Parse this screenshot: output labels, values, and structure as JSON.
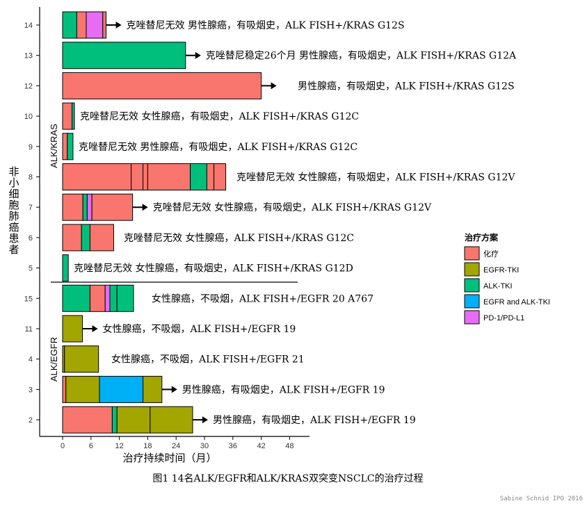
{
  "chart_data": {
    "type": "bar",
    "orientation": "horizontal",
    "title": "图1 14名ALK/EGFR和ALK/KRAS双突变NSCLC的治疗过程",
    "xlabel": "治疗持续时间（月）",
    "ylabel": "非小细胞肺癌患者",
    "xlim": [
      0,
      48
    ],
    "xticks": [
      0,
      6,
      12,
      18,
      24,
      30,
      36,
      42,
      48
    ],
    "grid": false,
    "legend": {
      "title": "治疗方案",
      "placement": "right",
      "entries": [
        {
          "key": "chemo",
          "label": "化疗",
          "color": "#F8766D"
        },
        {
          "key": "egfr",
          "label": "EGFR-TKI",
          "color": "#A3A500"
        },
        {
          "key": "alk",
          "label": "ALK-TKI",
          "color": "#00BF7D"
        },
        {
          "key": "egfr_alk",
          "label": "EGFR and ALK-TKI",
          "color": "#00B0F6"
        },
        {
          "key": "pd1",
          "label": "PD-1/PD-L1",
          "color": "#E76BF3"
        }
      ]
    },
    "groups": [
      {
        "label": "ALK/KRAS",
        "patients": [
          "14",
          "13",
          "12",
          "10",
          "9",
          "8",
          "7",
          "6",
          "5"
        ]
      },
      {
        "label": "ALK/EGFR",
        "patients": [
          "15",
          "11",
          "4",
          "3",
          "2"
        ]
      }
    ],
    "patients": [
      {
        "id": "14",
        "ongoing": true,
        "annotation": "克唑替尼无效  男性腺癌，有吸烟史，ALK FISH+/KRAS G12S",
        "segments": [
          {
            "t": "alk",
            "s": 0,
            "e": 3
          },
          {
            "t": "chemo",
            "s": 3,
            "e": 5
          },
          {
            "t": "pd1",
            "s": 5,
            "e": 8.5
          },
          {
            "t": "chemo",
            "s": 8.5,
            "e": 9.2
          }
        ]
      },
      {
        "id": "13",
        "ongoing": true,
        "annotation": "克唑替尼稳定26个月 男性腺癌，有吸烟史，ALK FISH+/KRAS G12A",
        "segments": [
          {
            "t": "alk",
            "s": 0,
            "e": 26
          }
        ]
      },
      {
        "id": "12",
        "ongoing": true,
        "annotation": "男性腺癌，有吸烟史，ALK FISH+/KRAS G12S",
        "segments": [
          {
            "t": "chemo",
            "s": 0,
            "e": 42
          }
        ]
      },
      {
        "id": "10",
        "ongoing": false,
        "annotation": "克唑替尼无效  女性腺癌，有吸烟史，ALK FISH+/KRAS G12C",
        "segments": [
          {
            "t": "chemo",
            "s": 0,
            "e": 2
          },
          {
            "t": "alk",
            "s": 2,
            "e": 2.5
          }
        ]
      },
      {
        "id": "9",
        "ongoing": false,
        "annotation": "克唑替尼无效  男性腺癌，有吸烟史，ALK FISH+/KRAS G12C",
        "segments": [
          {
            "t": "chemo",
            "s": 0,
            "e": 1
          },
          {
            "t": "alk",
            "s": 1,
            "e": 2.2
          }
        ]
      },
      {
        "id": "8",
        "ongoing": false,
        "annotation": "克唑替尼无效 女性腺癌，有吸烟史，ALK FISH+/KRAS G12V",
        "segments": [
          {
            "t": "chemo",
            "s": 0,
            "e": 14.5
          },
          {
            "t": "chemo",
            "s": 14.5,
            "e": 17
          },
          {
            "t": "chemo",
            "s": 17,
            "e": 18
          },
          {
            "t": "chemo",
            "s": 18,
            "e": 27
          },
          {
            "t": "alk",
            "s": 27,
            "e": 30.5
          },
          {
            "t": "chemo",
            "s": 30.5,
            "e": 32
          },
          {
            "t": "chemo",
            "s": 32,
            "e": 34.5
          }
        ]
      },
      {
        "id": "7",
        "ongoing": true,
        "annotation": "克唑替尼无效 女性腺癌，有吸烟史，ALK FISH+/KRAS G12V",
        "segments": [
          {
            "t": "chemo",
            "s": 0,
            "e": 4.3
          },
          {
            "t": "alk",
            "s": 4.3,
            "e": 5.2
          },
          {
            "t": "pd1",
            "s": 5.2,
            "e": 6.2
          },
          {
            "t": "chemo",
            "s": 6.2,
            "e": 14.8
          }
        ]
      },
      {
        "id": "6",
        "ongoing": false,
        "annotation": "克唑替尼无效 女性腺癌，ALK FISH+/KRAS G12C",
        "segments": [
          {
            "t": "chemo",
            "s": 0,
            "e": 4
          },
          {
            "t": "alk",
            "s": 4,
            "e": 5.8
          },
          {
            "t": "chemo",
            "s": 5.8,
            "e": 10.8
          }
        ]
      },
      {
        "id": "5",
        "ongoing": false,
        "annotation": "克唑替尼无效  女性腺癌，有吸烟史，ALK FISH+/KRAS G12D",
        "segments": [
          {
            "t": "alk",
            "s": 0,
            "e": 1.2
          }
        ]
      },
      {
        "id": "15",
        "ongoing": false,
        "annotation": "女性腺癌，不吸烟，ALK FISH+/EGFR 20 A767",
        "segments": [
          {
            "t": "alk",
            "s": 0,
            "e": 5.8
          },
          {
            "t": "chemo",
            "s": 5.8,
            "e": 9
          },
          {
            "t": "pd1",
            "s": 9,
            "e": 10
          },
          {
            "t": "alk",
            "s": 10,
            "e": 11.5
          },
          {
            "t": "alk",
            "s": 11.5,
            "e": 15
          }
        ]
      },
      {
        "id": "11",
        "ongoing": true,
        "annotation": "女性腺癌，不吸烟，ALK FISH+/EGFR 19",
        "segments": [
          {
            "t": "egfr",
            "s": 0,
            "e": 4.2
          }
        ]
      },
      {
        "id": "4",
        "ongoing": false,
        "annotation": "女性腺癌，不吸烟，ALK FISH+/EGFR 21",
        "segments": [
          {
            "t": "egfr",
            "s": 0,
            "e": 0.4
          },
          {
            "t": "egfr",
            "s": 0.4,
            "e": 7.6
          }
        ]
      },
      {
        "id": "3",
        "ongoing": true,
        "annotation": "男性腺癌，有吸烟史，ALK FISH+/EGFR 19",
        "segments": [
          {
            "t": "chemo",
            "s": 0,
            "e": 0.7
          },
          {
            "t": "egfr",
            "s": 0.7,
            "e": 7.8
          },
          {
            "t": "egfr_alk",
            "s": 7.8,
            "e": 17
          },
          {
            "t": "egfr",
            "s": 17,
            "e": 21
          }
        ]
      },
      {
        "id": "2",
        "ongoing": true,
        "annotation": "男性腺癌，有吸烟史，ALK FISH+/EGFR 19",
        "segments": [
          {
            "t": "chemo",
            "s": 0,
            "e": 10.5
          },
          {
            "t": "alk",
            "s": 10.5,
            "e": 11.5
          },
          {
            "t": "egfr",
            "s": 11.5,
            "e": 18.5
          },
          {
            "t": "egfr",
            "s": 18.5,
            "e": 27.5
          }
        ]
      }
    ]
  },
  "watermark": "Sabine Schnid IPO 2016"
}
